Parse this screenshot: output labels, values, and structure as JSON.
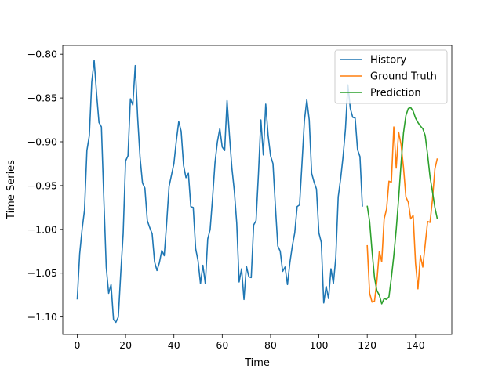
{
  "chart_data": {
    "type": "line",
    "xlabel": "Time",
    "ylabel": "Time Series",
    "xlim": [
      -6,
      155
    ],
    "ylim": [
      -1.12,
      -0.79
    ],
    "xticks": [
      0,
      20,
      40,
      60,
      80,
      100,
      120,
      140
    ],
    "yticks": [
      -1.1,
      -1.05,
      -1.0,
      -0.95,
      -0.9,
      -0.85,
      -0.8
    ],
    "ytick_labels": [
      "−1.10",
      "−1.05",
      "−1.00",
      "−0.95",
      "−0.90",
      "−0.85",
      "−0.80"
    ],
    "grid": false,
    "legend_position": "top-right",
    "series": [
      {
        "name": "History",
        "color": "#1f77b4",
        "x_start": 0,
        "values": [
          -1.08,
          -1.028,
          -1.0,
          -0.978,
          -0.91,
          -0.893,
          -0.832,
          -0.807,
          -0.845,
          -0.878,
          -0.883,
          -0.965,
          -1.043,
          -1.073,
          -1.063,
          -1.103,
          -1.106,
          -1.1,
          -1.05,
          -1.005,
          -0.922,
          -0.916,
          -0.851,
          -0.858,
          -0.813,
          -0.872,
          -0.918,
          -0.947,
          -0.953,
          -0.99,
          -0.998,
          -1.005,
          -1.037,
          -1.047,
          -1.038,
          -1.024,
          -1.03,
          -0.993,
          -0.951,
          -0.938,
          -0.925,
          -0.899,
          -0.877,
          -0.888,
          -0.927,
          -0.941,
          -0.936,
          -0.974,
          -0.975,
          -1.022,
          -1.036,
          -1.062,
          -1.041,
          -1.062,
          -1.011,
          -1.0,
          -0.964,
          -0.924,
          -0.9,
          -0.885,
          -0.906,
          -0.91,
          -0.853,
          -0.893,
          -0.93,
          -0.956,
          -0.993,
          -1.06,
          -1.045,
          -1.08,
          -1.042,
          -1.054,
          -1.055,
          -0.995,
          -0.99,
          -0.936,
          -0.875,
          -0.915,
          -0.857,
          -0.893,
          -0.916,
          -0.925,
          -0.974,
          -1.019,
          -1.025,
          -1.048,
          -1.043,
          -1.063,
          -1.038,
          -1.019,
          -1.004,
          -0.974,
          -0.972,
          -0.925,
          -0.876,
          -0.852,
          -0.875,
          -0.936,
          -0.946,
          -0.954,
          -1.004,
          -1.015,
          -1.084,
          -1.065,
          -1.079,
          -1.045,
          -1.062,
          -1.032,
          -0.963,
          -0.942,
          -0.917,
          -0.885,
          -0.835,
          -0.862,
          -0.872,
          -0.873,
          -0.909,
          -0.917,
          -0.974
        ]
      },
      {
        "name": "Ground Truth",
        "color": "#ff7f0e",
        "x_start": 120,
        "values": [
          -1.018,
          -1.073,
          -1.083,
          -1.082,
          -1.059,
          -1.025,
          -1.037,
          -0.988,
          -0.977,
          -0.945,
          -0.946,
          -0.883,
          -0.93,
          -0.889,
          -0.903,
          -0.929,
          -0.963,
          -0.969,
          -0.988,
          -0.984,
          -1.039,
          -1.068,
          -1.03,
          -1.043,
          -1.017,
          -0.991,
          -0.992,
          -0.966,
          -0.931,
          -0.919
        ]
      },
      {
        "name": "Prediction",
        "color": "#2ca02c",
        "x_start": 120,
        "values": [
          -0.973,
          -0.991,
          -1.025,
          -1.055,
          -1.07,
          -1.075,
          -1.085,
          -1.079,
          -1.08,
          -1.077,
          -1.055,
          -1.03,
          -1.0,
          -0.965,
          -0.925,
          -0.89,
          -0.87,
          -0.862,
          -0.861,
          -0.865,
          -0.873,
          -0.878,
          -0.882,
          -0.885,
          -0.893,
          -0.915,
          -0.94,
          -0.957,
          -0.975,
          -0.988
        ]
      }
    ]
  }
}
